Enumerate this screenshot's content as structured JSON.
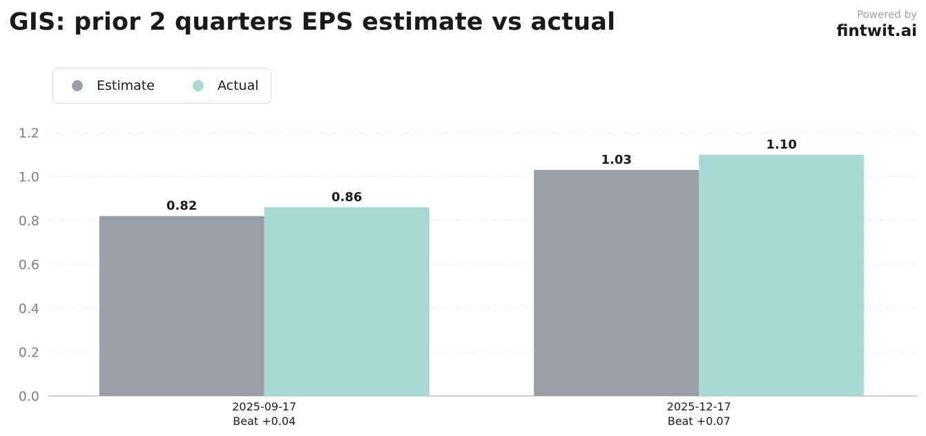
{
  "header": {
    "title": "GIS: prior 2 quarters EPS estimate vs actual",
    "powered_by": "Powered by",
    "brand": "fintwit.ai"
  },
  "chart_data": {
    "type": "bar",
    "title": "GIS: prior 2 quarters EPS estimate vs actual",
    "categories": [
      "2025-09-17",
      "2025-12-17"
    ],
    "category_sublabels": [
      "Beat +0.04",
      "Beat +0.07"
    ],
    "series": [
      {
        "name": "Estimate",
        "values": [
          0.82,
          1.03
        ],
        "labels": [
          "0.82",
          "1.03"
        ],
        "color": "#9a9fa7"
      },
      {
        "name": "Actual",
        "values": [
          0.86,
          1.1
        ],
        "labels": [
          "0.86",
          "1.10"
        ],
        "color": "#a8d9d5"
      }
    ],
    "yticks": [
      "0.0",
      "0.2",
      "0.4",
      "0.6",
      "0.8",
      "1.0",
      "1.2"
    ],
    "ylim": [
      0,
      1.2
    ],
    "xlabel": "",
    "ylabel": "",
    "grid": true,
    "legend_position": "top-left"
  }
}
